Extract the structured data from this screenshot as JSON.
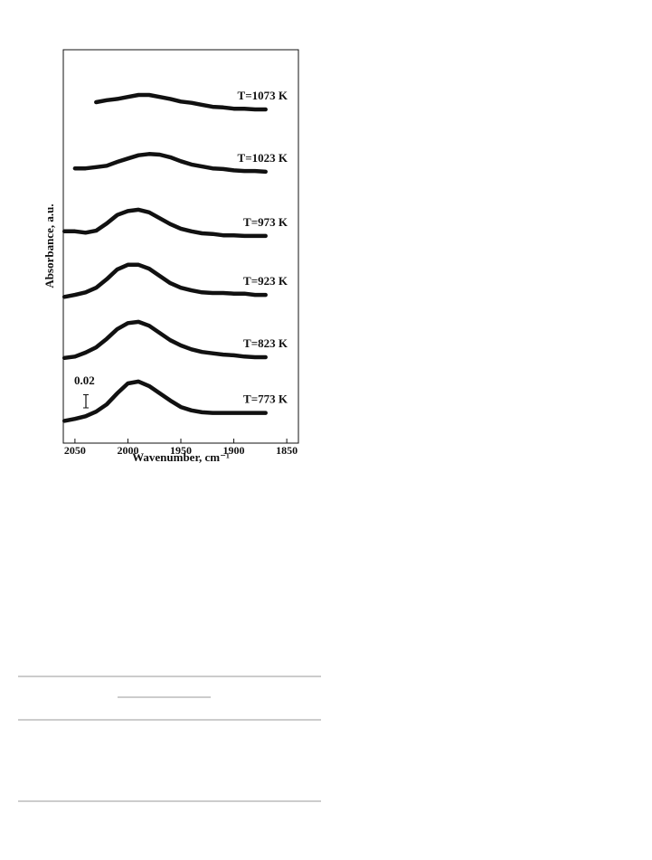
{
  "chart_data": {
    "type": "line",
    "xlabel": "Wavenumber, cm⁻¹",
    "ylabel": "Absorbance, a.u.",
    "xlim": [
      2061,
      1839
    ],
    "ylim": [
      0,
      0.6
    ],
    "xticks": [
      2050,
      2000,
      1950,
      1900,
      1850
    ],
    "scale_bar": 0.02,
    "color": "#111111",
    "x": [
      2060,
      2050,
      2040,
      2030,
      2020,
      2010,
      2000,
      1990,
      1980,
      1970,
      1960,
      1950,
      1940,
      1930,
      1920,
      1910,
      1900,
      1890,
      1880,
      1870
    ],
    "series": [
      {
        "name": "T=773 K",
        "values": [
          0.034,
          0.037,
          0.041,
          0.048,
          0.059,
          0.076,
          0.091,
          0.094,
          0.087,
          0.076,
          0.065,
          0.055,
          0.05,
          0.047,
          0.046,
          0.046,
          0.046,
          0.046,
          0.046,
          0.046
        ]
      },
      {
        "name": "T=823 K",
        "values": [
          0.13,
          0.132,
          0.138,
          0.146,
          0.159,
          0.174,
          0.183,
          0.185,
          0.179,
          0.168,
          0.157,
          0.149,
          0.143,
          0.139,
          0.137,
          0.135,
          0.134,
          0.132,
          0.131,
          0.131
        ]
      },
      {
        "name": "T=923 K",
        "values": [
          0.223,
          0.226,
          0.23,
          0.237,
          0.25,
          0.265,
          0.272,
          0.272,
          0.266,
          0.255,
          0.244,
          0.237,
          0.233,
          0.23,
          0.229,
          0.229,
          0.228,
          0.228,
          0.226,
          0.226
        ]
      },
      {
        "name": "T=973 K",
        "values": [
          0.323,
          0.323,
          0.321,
          0.324,
          0.335,
          0.348,
          0.354,
          0.356,
          0.352,
          0.343,
          0.334,
          0.327,
          0.323,
          0.32,
          0.319,
          0.317,
          0.317,
          0.316,
          0.316,
          0.316
        ]
      },
      {
        "name": "T=1023 K",
        "values": [
          null,
          0.419,
          0.419,
          0.421,
          0.423,
          0.429,
          0.434,
          0.439,
          0.441,
          0.44,
          0.436,
          0.43,
          0.425,
          0.422,
          0.419,
          0.418,
          0.416,
          0.415,
          0.415,
          0.414
        ]
      },
      {
        "name": "T=1073 K",
        "values": [
          null,
          null,
          null,
          0.52,
          0.523,
          0.525,
          0.528,
          0.531,
          0.531,
          0.528,
          0.525,
          0.521,
          0.519,
          0.516,
          0.513,
          0.512,
          0.51,
          0.51,
          0.509,
          0.509
        ]
      }
    ]
  }
}
